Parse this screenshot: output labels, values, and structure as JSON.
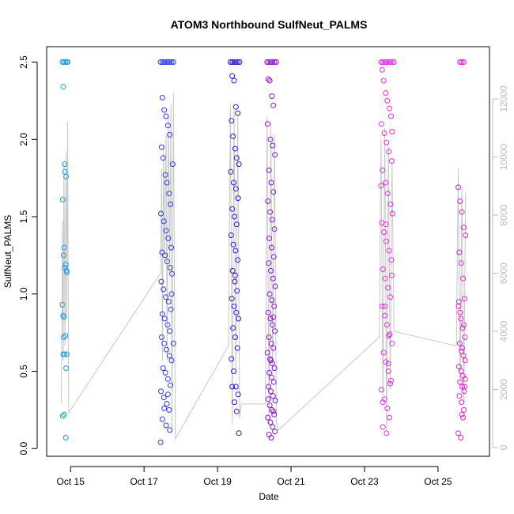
{
  "chart_data": {
    "type": "scatter",
    "title": "ATOM3 Northbound SulfNeut_PALMS",
    "xlabel": "Date",
    "ylabel": "SulfNeut_PALMS",
    "x_tick_labels": [
      "Oct 15",
      "Oct 17",
      "Oct 19",
      "Oct 21",
      "Oct 23",
      "Oct 25"
    ],
    "x_tick_days": [
      15,
      17,
      19,
      21,
      23,
      25
    ],
    "xlim_days": [
      14.35,
      26.4
    ],
    "ylim": [
      -0.05,
      2.6
    ],
    "y_ticks": [
      "0.0",
      "0.5",
      "1.0",
      "1.5",
      "2.0",
      "2.5"
    ],
    "y_tick_values": [
      0.0,
      0.5,
      1.0,
      1.5,
      2.0,
      2.5
    ],
    "y2_ticks": [
      "0",
      "2000",
      "4000",
      "6000",
      "8000",
      "10000",
      "12000"
    ],
    "y2_tick_values": [
      0,
      2000,
      4000,
      6000,
      8000,
      10000,
      12000
    ],
    "y2lim": [
      -300,
      13800
    ],
    "grid": false,
    "colors": {
      "flight1": "#1e9be6",
      "flight2": "#2f3bee",
      "flight3": "#3b10d8",
      "flight4": "#8a14d4",
      "flight5": "#e42ee8",
      "flight6": "#e81fd2",
      "altitude_line": "#c8c8c8"
    },
    "series": [
      {
        "color_key": "flight1",
        "x": [
          14.78,
          14.82,
          14.86,
          14.9,
          14.8,
          14.84,
          14.88,
          14.79,
          14.83,
          14.87,
          14.81,
          14.85,
          14.9,
          14.78,
          14.82,
          14.86,
          14.8,
          14.84,
          14.88,
          14.79,
          14.83,
          14.87,
          14.81,
          14.85,
          14.89,
          14.9,
          14.8,
          14.92
        ],
        "y": [
          2.5,
          2.5,
          2.5,
          2.5,
          2.34,
          1.84,
          1.76,
          1.61,
          1.3,
          1.19,
          1.25,
          1.17,
          1.14,
          0.93,
          0.85,
          0.73,
          0.61,
          0.61,
          0.52,
          0.21,
          0.22,
          0.07,
          0.72,
          1.79,
          1.15,
          0.61,
          0.86,
          2.5
        ]
      },
      {
        "color_key": "flight2",
        "x": [
          17.45,
          17.5,
          17.55,
          17.6,
          17.65,
          17.7,
          17.75,
          17.8,
          17.5,
          17.55,
          17.6,
          17.65,
          17.7,
          17.48,
          17.52,
          17.58,
          17.62,
          17.68,
          17.72,
          17.78,
          17.46,
          17.54,
          17.6,
          17.66,
          17.74,
          17.49,
          17.57,
          17.63,
          17.71,
          17.76,
          17.47,
          17.53,
          17.59,
          17.67,
          17.73,
          17.5,
          17.56,
          17.64,
          17.7,
          17.48,
          17.55,
          17.61,
          17.69,
          17.75,
          17.52,
          17.58,
          17.65,
          17.72,
          17.46,
          17.54,
          17.62,
          17.68,
          17.8,
          17.5,
          17.6,
          17.7,
          17.45,
          17.55,
          17.65,
          17.75
        ],
        "y": [
          2.5,
          2.5,
          2.5,
          2.5,
          2.5,
          2.5,
          2.5,
          2.5,
          2.27,
          2.19,
          2.15,
          2.09,
          2.03,
          1.95,
          1.88,
          1.77,
          1.72,
          1.65,
          1.58,
          1.84,
          1.52,
          1.47,
          1.41,
          1.36,
          1.3,
          1.27,
          1.25,
          1.21,
          1.17,
          1.13,
          1.08,
          1.03,
          0.98,
          0.95,
          0.9,
          0.87,
          0.84,
          0.8,
          0.76,
          0.72,
          0.68,
          0.64,
          0.6,
          0.57,
          0.52,
          0.49,
          0.45,
          0.41,
          0.37,
          0.33,
          0.29,
          0.25,
          0.68,
          0.19,
          0.15,
          0.12,
          0.04,
          0.26,
          0.35,
          1.0
        ]
      },
      {
        "color_key": "flight3",
        "x": [
          19.35,
          19.4,
          19.45,
          19.5,
          19.55,
          19.6,
          19.4,
          19.45,
          19.5,
          19.55,
          19.38,
          19.42,
          19.48,
          19.52,
          19.58,
          19.36,
          19.44,
          19.5,
          19.56,
          19.4,
          19.46,
          19.52,
          19.37,
          19.43,
          19.49,
          19.55,
          19.41,
          19.47,
          19.53,
          19.39,
          19.45,
          19.51,
          19.57,
          19.42,
          19.48,
          19.54,
          19.38,
          19.44,
          19.5,
          19.56,
          19.46,
          19.52,
          19.58,
          19.4,
          19.48
        ],
        "y": [
          2.5,
          2.5,
          2.5,
          2.5,
          2.5,
          2.5,
          2.41,
          2.38,
          2.21,
          2.17,
          2.12,
          2.02,
          1.94,
          1.88,
          1.84,
          1.79,
          1.72,
          1.68,
          1.62,
          1.55,
          1.5,
          1.45,
          1.38,
          1.32,
          1.28,
          1.22,
          1.15,
          1.08,
          1.02,
          0.97,
          0.92,
          0.88,
          0.84,
          0.78,
          0.72,
          0.65,
          0.58,
          0.5,
          0.4,
          0.35,
          0.3,
          0.24,
          0.1,
          0.4,
          1.12
        ]
      },
      {
        "color_key": "flight4",
        "x": [
          20.35,
          20.4,
          20.45,
          20.5,
          20.55,
          20.6,
          20.38,
          20.42,
          20.48,
          20.52,
          20.36,
          20.44,
          20.5,
          20.56,
          20.4,
          20.46,
          20.52,
          20.37,
          20.43,
          20.49,
          20.55,
          20.41,
          20.47,
          20.53,
          20.39,
          20.45,
          20.51,
          20.57,
          20.42,
          20.48,
          20.54,
          20.38,
          20.44,
          20.5,
          20.56,
          20.4,
          20.46,
          20.52,
          20.36,
          20.43,
          20.49,
          20.55,
          20.41,
          20.47,
          20.53,
          20.39,
          20.45,
          20.51,
          20.57,
          20.42,
          20.48,
          20.54,
          20.37,
          20.44,
          20.5,
          20.56,
          20.4,
          20.46,
          20.52,
          20.38,
          20.45,
          20.52
        ],
        "y": [
          2.5,
          2.5,
          2.5,
          2.5,
          2.5,
          2.5,
          2.39,
          2.38,
          2.28,
          2.22,
          2.1,
          2.0,
          1.96,
          1.9,
          1.8,
          1.72,
          1.66,
          1.6,
          1.53,
          1.48,
          1.42,
          1.36,
          1.3,
          1.24,
          1.2,
          1.15,
          1.1,
          1.05,
          1.0,
          0.96,
          0.92,
          0.88,
          0.84,
          0.8,
          0.76,
          0.72,
          0.68,
          0.65,
          0.62,
          0.58,
          0.55,
          0.52,
          0.49,
          0.46,
          0.43,
          0.4,
          0.37,
          0.34,
          0.31,
          0.28,
          0.25,
          0.22,
          0.2,
          0.17,
          0.14,
          0.11,
          0.09,
          0.07,
          0.24,
          0.32,
          0.57,
          0.85
        ]
      },
      {
        "color_key": "flight5",
        "x": [
          23.45,
          23.5,
          23.55,
          23.6,
          23.65,
          23.7,
          23.75,
          23.8,
          23.48,
          23.52,
          23.58,
          23.62,
          23.68,
          23.72,
          23.46,
          23.54,
          23.6,
          23.66,
          23.74,
          23.49,
          23.57,
          23.63,
          23.71,
          23.76,
          23.47,
          23.53,
          23.59,
          23.67,
          23.73,
          23.5,
          23.56,
          23.64,
          23.7,
          23.48,
          23.55,
          23.61,
          23.69,
          23.75,
          23.52,
          23.58,
          23.65,
          23.72,
          23.46,
          23.54,
          23.62,
          23.68,
          23.5,
          23.6,
          23.7,
          23.45,
          23.55,
          23.65,
          23.75,
          23.5,
          23.58,
          23.66,
          23.74
        ],
        "y": [
          2.5,
          2.5,
          2.5,
          2.5,
          2.5,
          2.5,
          2.5,
          2.5,
          2.45,
          2.38,
          2.3,
          2.25,
          2.2,
          2.15,
          2.1,
          2.04,
          1.98,
          1.92,
          1.86,
          1.8,
          1.72,
          1.65,
          1.58,
          1.52,
          1.46,
          1.4,
          1.34,
          1.28,
          1.22,
          1.16,
          1.1,
          1.04,
          0.98,
          0.92,
          0.86,
          0.8,
          0.74,
          0.68,
          0.62,
          0.56,
          0.5,
          0.44,
          0.38,
          0.32,
          0.26,
          0.2,
          0.14,
          0.1,
          0.42,
          1.7,
          0.92,
          0.55,
          2.05,
          0.3,
          1.45,
          0.73,
          1.12
        ]
      },
      {
        "color_key": "flight6",
        "x": [
          25.6,
          25.65,
          25.7,
          25.55,
          25.6,
          25.65,
          25.7,
          25.75,
          25.58,
          25.63,
          25.68,
          25.72,
          25.56,
          25.62,
          25.67,
          25.73,
          25.59,
          25.64,
          25.69,
          25.74,
          25.57,
          25.63,
          25.68,
          25.6,
          25.66,
          25.71,
          25.58,
          25.64,
          25.7,
          25.55,
          25.62,
          25.68,
          25.74,
          25.6,
          25.66,
          25.72,
          25.57,
          25.65,
          25.7
        ],
        "y": [
          2.5,
          2.5,
          2.5,
          1.69,
          1.6,
          1.53,
          1.43,
          1.38,
          1.27,
          1.2,
          1.1,
          0.97,
          0.92,
          0.84,
          0.78,
          0.72,
          0.68,
          0.63,
          0.6,
          0.57,
          0.53,
          0.5,
          0.47,
          0.43,
          0.4,
          0.37,
          0.34,
          0.3,
          0.25,
          0.1,
          0.07,
          0.2,
          0.45,
          0.88,
          0.65,
          0.4,
          0.95,
          0.22,
          0.8
        ]
      }
    ],
    "altitude_line": {
      "x": [
        14.75,
        14.78,
        14.8,
        14.82,
        14.85,
        14.88,
        14.9,
        14.92,
        14.95,
        17.45,
        17.48,
        17.5,
        17.53,
        17.56,
        17.6,
        17.63,
        17.66,
        17.7,
        17.73,
        17.76,
        17.8,
        17.85,
        19.3,
        19.35,
        19.4,
        19.45,
        19.5,
        19.55,
        19.6,
        19.65,
        20.3,
        20.35,
        20.4,
        20.45,
        20.5,
        20.55,
        20.6,
        20.65,
        23.4,
        23.45,
        23.5,
        23.55,
        23.6,
        23.65,
        23.7,
        23.75,
        23.8,
        25.5,
        25.55,
        25.6,
        25.65,
        25.7,
        25.75
      ],
      "y": [
        1500,
        7800,
        3000,
        9800,
        3500,
        10200,
        4500,
        11200,
        1200,
        6000,
        9600,
        3000,
        10400,
        6500,
        10800,
        3000,
        11400,
        6000,
        11800,
        500,
        12200,
        300,
        3500,
        11800,
        800,
        11600,
        2500,
        11400,
        1000,
        1500,
        1500,
        11400,
        800,
        11200,
        2500,
        10800,
        900,
        600,
        3800,
        10600,
        1800,
        11000,
        600,
        10400,
        2000,
        9800,
        4000,
        3500,
        9600,
        2000,
        9000,
        1500,
        8800
      ]
    }
  }
}
